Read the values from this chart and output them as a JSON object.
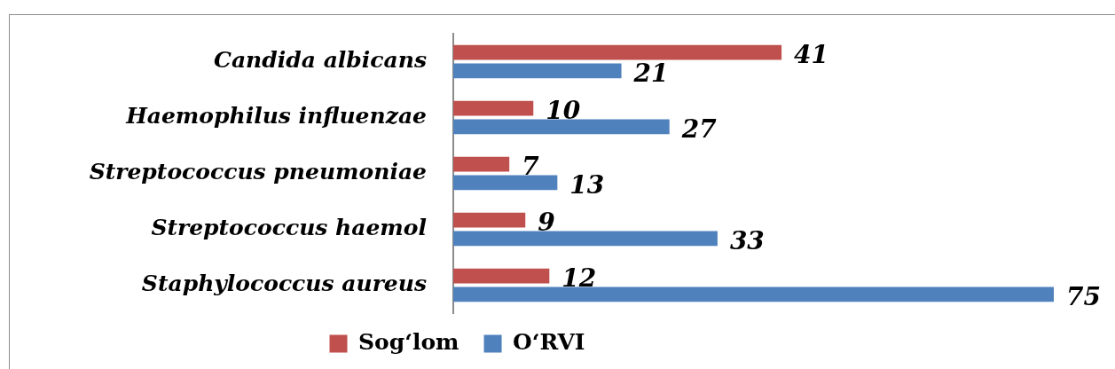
{
  "chart_data": {
    "type": "bar",
    "orientation": "horizontal",
    "categories": [
      "Candida albicans",
      "Haemophilus influenzae",
      "Streptococcus pneumoniae",
      "Streptococcus haemol",
      "Staphylococcus aureus"
    ],
    "series": [
      {
        "name": "Sog‘lom",
        "color": "#c0504d",
        "values": [
          41,
          10,
          7,
          9,
          12
        ]
      },
      {
        "name": "O‘RVI",
        "color": "#4f81bd",
        "values": [
          21,
          27,
          13,
          33,
          75
        ]
      }
    ],
    "data_labels": true,
    "legend": "bottom",
    "grid": false,
    "tick_labels": "y"
  }
}
